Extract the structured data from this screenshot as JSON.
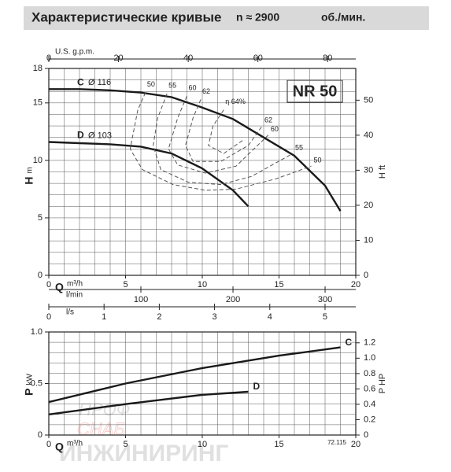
{
  "header": {
    "title": "Характеристические кривые",
    "speed": "n ≈ 2900",
    "unit": "об./мин."
  },
  "model": "NR 50",
  "code": "72.115",
  "watermark": [
    "ПРОФ",
    "СНАБ",
    "ИНЖИНИРИНГ"
  ],
  "chart_data": [
    {
      "type": "line",
      "ylabel": "H",
      "yunit": "m",
      "y2label": "H ft",
      "xlabel": "Q",
      "xunit": "m³/h",
      "xlim": [
        0,
        20
      ],
      "xticks": [
        0,
        5,
        10,
        15,
        20
      ],
      "ylim": [
        0,
        18
      ],
      "yticks": [
        0,
        5,
        10,
        15,
        18
      ],
      "y2lim": [
        0,
        59.06
      ],
      "y2ticks": [
        0,
        10,
        20,
        30,
        40,
        50
      ],
      "xminor": 1,
      "yminor": 1,
      "grid": true,
      "extra_x_axes": [
        {
          "label": "U.S. g.p.m.",
          "position": "top",
          "lim": [
            0,
            88.06
          ],
          "ticks": [
            0,
            20,
            40,
            60,
            80
          ]
        },
        {
          "label": "l/min",
          "position": "bottom",
          "lim": [
            0,
            333.3
          ],
          "ticks": [
            100,
            200,
            300
          ]
        },
        {
          "label": "l/s",
          "position": "bottom",
          "lim": [
            0,
            5.556
          ],
          "ticks": [
            0,
            1,
            2,
            3,
            4,
            5
          ]
        }
      ],
      "series": [
        {
          "name": "C",
          "diameter": "Ø 116",
          "color": "#1a1a1a",
          "style": "solid",
          "name_at": "start",
          "x": [
            0,
            2,
            4,
            6,
            8,
            10,
            12,
            14,
            16,
            18,
            19
          ],
          "values": [
            16.2,
            16.2,
            16.1,
            15.9,
            15.5,
            14.6,
            13.6,
            12.0,
            10.4,
            7.8,
            5.6
          ]
        },
        {
          "name": "D",
          "diameter": "Ø 103",
          "color": "#1a1a1a",
          "style": "solid",
          "name_at": "start",
          "x": [
            0,
            2,
            4,
            6,
            8,
            10,
            12,
            13
          ],
          "values": [
            11.6,
            11.5,
            11.4,
            11.2,
            10.6,
            9.3,
            7.4,
            6.0
          ]
        },
        {
          "name": "50",
          "color": "#555555",
          "style": "dashed",
          "label_at": [
            "start",
            "end"
          ],
          "x": [
            6.3,
            5.8,
            5.3,
            6.1,
            8.1,
            10.2,
            12.2,
            14.8,
            17.1
          ],
          "values": [
            15.9,
            14.4,
            11.0,
            9.2,
            7.9,
            7.4,
            7.5,
            8.4,
            9.5
          ]
        },
        {
          "name": "55",
          "color": "#555555",
          "style": "dashed",
          "label_at": [
            "start",
            "end"
          ],
          "x": [
            7.7,
            7.1,
            6.8,
            7.3,
            9.1,
            11.2,
            13.2,
            15.9
          ],
          "values": [
            15.8,
            13.7,
            11.3,
            9.2,
            8.1,
            7.9,
            8.6,
            10.6
          ]
        },
        {
          "name": "60",
          "color": "#555555",
          "style": "dashed",
          "label_at": [
            "start",
            "end"
          ],
          "x": [
            9.0,
            8.4,
            7.8,
            8.4,
            10.2,
            12.2,
            14.3
          ],
          "values": [
            15.6,
            13.7,
            11.0,
            9.6,
            8.9,
            9.5,
            12.2
          ]
        },
        {
          "name": "62",
          "color": "#555555",
          "style": "dashed",
          "label_at": [
            "start",
            "end"
          ],
          "x": [
            9.9,
            9.4,
            8.9,
            9.4,
            11.2,
            13.0,
            13.9
          ],
          "values": [
            15.3,
            13.7,
            11.3,
            9.9,
            9.9,
            11.3,
            13.0
          ]
        },
        {
          "name": "η 64%",
          "color": "#555555",
          "style": "dashed",
          "label_at": [
            "start"
          ],
          "x": [
            11.4,
            10.7,
            10.4,
            11.4,
            12.7
          ],
          "values": [
            14.4,
            13.0,
            11.3,
            10.6,
            11.8
          ]
        }
      ]
    },
    {
      "type": "line",
      "ylabel": "P",
      "yunit": "kW",
      "y2label": "P HP",
      "xlabel": "Q",
      "xunit": "m³/h",
      "xlim": [
        0,
        20
      ],
      "xticks": [
        0,
        5,
        10,
        15,
        20
      ],
      "ylim": [
        0,
        1
      ],
      "yticks": [
        0,
        0.5,
        {
          "value": 1,
          "label": "1.0"
        }
      ],
      "y2lim": [
        0,
        1.341
      ],
      "y2ticks": [
        0,
        0.2,
        0.4,
        0.6,
        0.8,
        {
          "value": 1,
          "label": "1.0"
        },
        1.2
      ],
      "xminor": 1,
      "yminor": 0.1,
      "grid": true,
      "series": [
        {
          "name": "C",
          "color": "#1a1a1a",
          "style": "solid",
          "name_at": "end",
          "x": [
            0,
            5,
            10,
            15,
            19
          ],
          "values": [
            0.32,
            0.5,
            0.65,
            0.77,
            0.85
          ]
        },
        {
          "name": "D",
          "color": "#1a1a1a",
          "style": "solid",
          "name_at": "end",
          "x": [
            0,
            5,
            10,
            13
          ],
          "values": [
            0.2,
            0.3,
            0.39,
            0.42
          ]
        }
      ]
    }
  ]
}
